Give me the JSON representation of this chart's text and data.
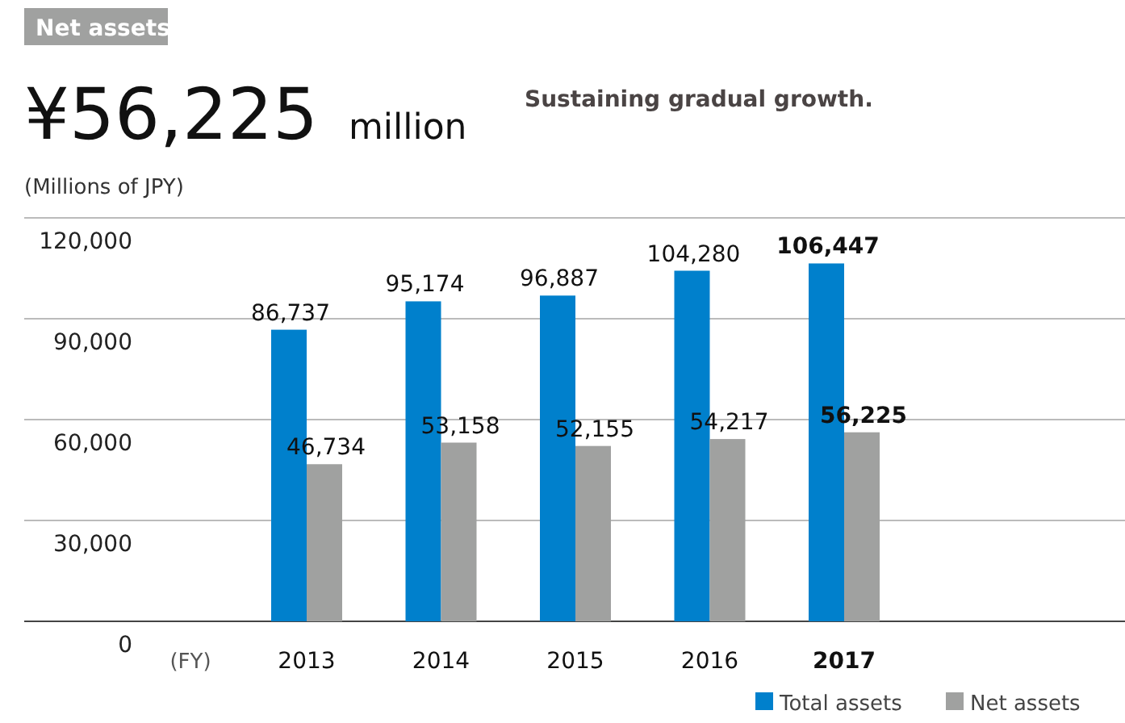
{
  "chart_data": {
    "type": "bar",
    "title": "Net assets",
    "subtitle": "¥56,225 million",
    "annotations": [
      "Sustaining gradual growth."
    ],
    "ylabel": "(Millions of JPY)",
    "xlabel": "(FY)",
    "categories": [
      "2013",
      "2014",
      "2015",
      "2016",
      "2017"
    ],
    "series": [
      {
        "name": "Total assets",
        "color": "#0080cc",
        "values": [
          86737,
          95174,
          96887,
          104280,
          106447
        ],
        "value_labels": [
          "86,737",
          "95,174",
          "96,887",
          "104,280",
          "106,447"
        ]
      },
      {
        "name": "Net assets",
        "color": "#a0a1a0",
        "values": [
          46734,
          53158,
          52155,
          54217,
          56225
        ],
        "value_labels": [
          "46,734",
          "53,158",
          "52,155",
          "54,217",
          "56,225"
        ]
      }
    ],
    "ylim": [
      0,
      120000
    ],
    "yticks": [
      {
        "value": 0,
        "label": "0"
      },
      {
        "value": 30000,
        "label": "30,000"
      },
      {
        "value": 60000,
        "label": "60,000"
      },
      {
        "value": 90000,
        "label": "90,000"
      },
      {
        "value": 120000,
        "label": "120,000"
      }
    ],
    "grid": "y",
    "legend": "bottom right"
  }
}
